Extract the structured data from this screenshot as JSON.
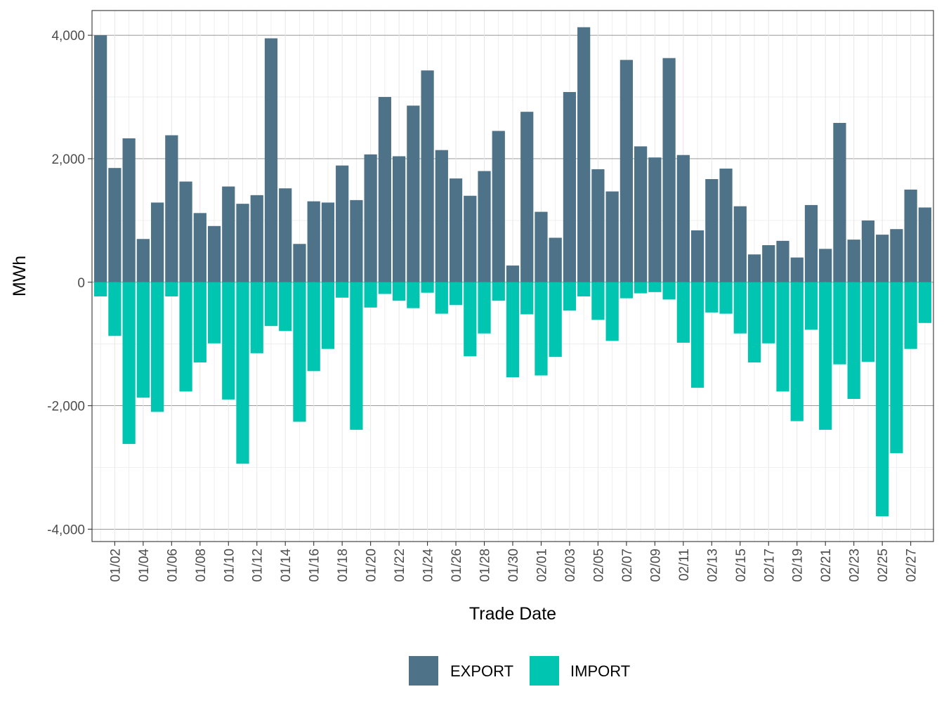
{
  "chart_data": {
    "type": "bar",
    "xlabel": "Trade Date",
    "ylabel": "MWh",
    "ylim": [
      -4200,
      4400
    ],
    "y_ticks": [
      -4000,
      -2000,
      0,
      2000,
      4000
    ],
    "y_tick_labels": [
      "-4,000",
      "-2,000",
      "0",
      "2,000",
      "4,000"
    ],
    "x_tick_labels": [
      "01/02",
      "01/04",
      "01/06",
      "01/08",
      "01/10",
      "01/12",
      "01/14",
      "01/16",
      "01/18",
      "01/20",
      "01/22",
      "01/24",
      "01/26",
      "01/28",
      "01/30",
      "02/01",
      "02/03",
      "02/05",
      "02/07",
      "02/09",
      "02/11",
      "02/13",
      "02/15",
      "02/17",
      "02/19",
      "02/21",
      "02/23",
      "02/25",
      "02/27"
    ],
    "grid": true,
    "legend_position": "bottom",
    "categories": [
      "01/01",
      "01/02",
      "01/03",
      "01/04",
      "01/05",
      "01/06",
      "01/07",
      "01/08",
      "01/09",
      "01/10",
      "01/11",
      "01/12",
      "01/13",
      "01/14",
      "01/15",
      "01/16",
      "01/17",
      "01/18",
      "01/19",
      "01/20",
      "01/21",
      "01/22",
      "01/23",
      "01/24",
      "01/25",
      "01/26",
      "01/27",
      "01/28",
      "01/29",
      "01/30",
      "01/31",
      "02/01",
      "02/02",
      "02/03",
      "02/04",
      "02/05",
      "02/06",
      "02/07",
      "02/08",
      "02/09",
      "02/10",
      "02/11",
      "02/12",
      "02/13",
      "02/14",
      "02/15",
      "02/16",
      "02/17",
      "02/18",
      "02/19",
      "02/20",
      "02/21",
      "02/22",
      "02/23",
      "02/24",
      "02/25",
      "02/26",
      "02/27",
      "02/28"
    ],
    "series": [
      {
        "name": "EXPORT",
        "color": "#4e7287",
        "values": [
          4000,
          1850,
          2330,
          700,
          1290,
          2380,
          1630,
          1120,
          910,
          1550,
          1270,
          1410,
          3950,
          1520,
          620,
          1310,
          1290,
          1890,
          1330,
          2070,
          3000,
          2040,
          2860,
          3430,
          2140,
          1680,
          1400,
          1800,
          2450,
          270,
          2760,
          1140,
          720,
          3080,
          4130,
          1830,
          1470,
          3600,
          2200,
          2020,
          3630,
          2060,
          840,
          1670,
          1840,
          1230,
          450,
          600,
          670,
          400,
          1250,
          540,
          2580,
          690,
          1000,
          770,
          860,
          1500,
          1210
        ]
      },
      {
        "name": "IMPORT",
        "color": "#00c5b0",
        "values": [
          -230,
          -870,
          -2620,
          -1870,
          -2100,
          -230,
          -1770,
          -1300,
          -990,
          -1900,
          -2940,
          -1150,
          -710,
          -790,
          -2260,
          -1440,
          -1080,
          -250,
          -2390,
          -410,
          -190,
          -300,
          -420,
          -170,
          -510,
          -370,
          -1200,
          -830,
          -300,
          -1540,
          -520,
          -1510,
          -1210,
          -460,
          -230,
          -610,
          -950,
          -260,
          -180,
          -160,
          -280,
          -980,
          -1710,
          -490,
          -510,
          -830,
          -1300,
          -990,
          -1770,
          -2250,
          -770,
          -2390,
          -1330,
          -1890,
          -1290,
          -3790,
          -2770,
          -1080,
          -660
        ]
      }
    ]
  }
}
